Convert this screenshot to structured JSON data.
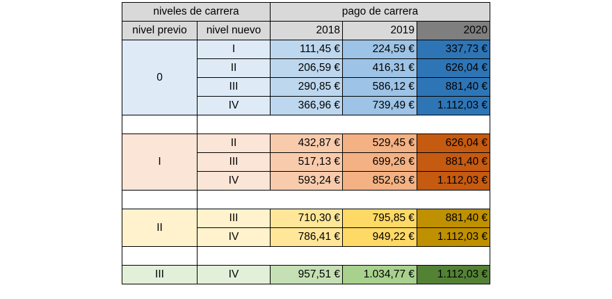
{
  "header": {
    "group_left": "niveles de carrera",
    "group_right": "pago de carrera",
    "col_prev": "nivel previo",
    "col_new": "nivel nuevo",
    "years": [
      "2018",
      "2019",
      "2020"
    ]
  },
  "colors": {
    "header_bg": "#d9d9d9",
    "header_2020_bg": "#7f7f7f",
    "group_0": {
      "label_bg": "#deebf7",
      "c2018": "#bdd7ee",
      "c2019": "#9dc3e6",
      "c2020": "#2e75b6"
    },
    "group_1": {
      "label_bg": "#fbe5d6",
      "c2018": "#f8cbad",
      "c2019": "#f4b183",
      "c2020": "#c55a11"
    },
    "group_2": {
      "label_bg": "#fff2cc",
      "c2018": "#ffe699",
      "c2019": "#ffd966",
      "c2020": "#bf9000"
    },
    "group_3": {
      "label_bg": "#e2f0d9",
      "c2018": "#c5e0b4",
      "c2019": "#a9d18e",
      "c2020": "#548235"
    }
  },
  "groups": [
    {
      "prev": "0",
      "rows": [
        {
          "new": "I",
          "y2018": "111,45 €",
          "y2019": "224,59 €",
          "y2020": "337,73 €"
        },
        {
          "new": "II",
          "y2018": "206,59 €",
          "y2019": "416,31 €",
          "y2020": "626,04 €"
        },
        {
          "new": "III",
          "y2018": "290,85 €",
          "y2019": "586,12 €",
          "y2020": "881,40 €"
        },
        {
          "new": "IV",
          "y2018": "366,96 €",
          "y2019": "739,49 €",
          "y2020": "1.112,03 €"
        }
      ]
    },
    {
      "prev": "I",
      "rows": [
        {
          "new": "II",
          "y2018": "432,87 €",
          "y2019": "529,45 €",
          "y2020": "626,04 €"
        },
        {
          "new": "III",
          "y2018": "517,13 €",
          "y2019": "699,26 €",
          "y2020": "881,40 €"
        },
        {
          "new": "IV",
          "y2018": "593,24 €",
          "y2019": "852,63 €",
          "y2020": "1.112,03 €"
        }
      ]
    },
    {
      "prev": "II",
      "rows": [
        {
          "new": "III",
          "y2018": "710,30 €",
          "y2019": "795,85 €",
          "y2020": "881,40 €"
        },
        {
          "new": "IV",
          "y2018": "786,41 €",
          "y2019": "949,22 €",
          "y2020": "1.112,03 €"
        }
      ]
    },
    {
      "prev": "III",
      "rows": [
        {
          "new": "IV",
          "y2018": "957,51 €",
          "y2019": "1.034,77 €",
          "y2020": "1.112,03 €"
        }
      ]
    }
  ]
}
